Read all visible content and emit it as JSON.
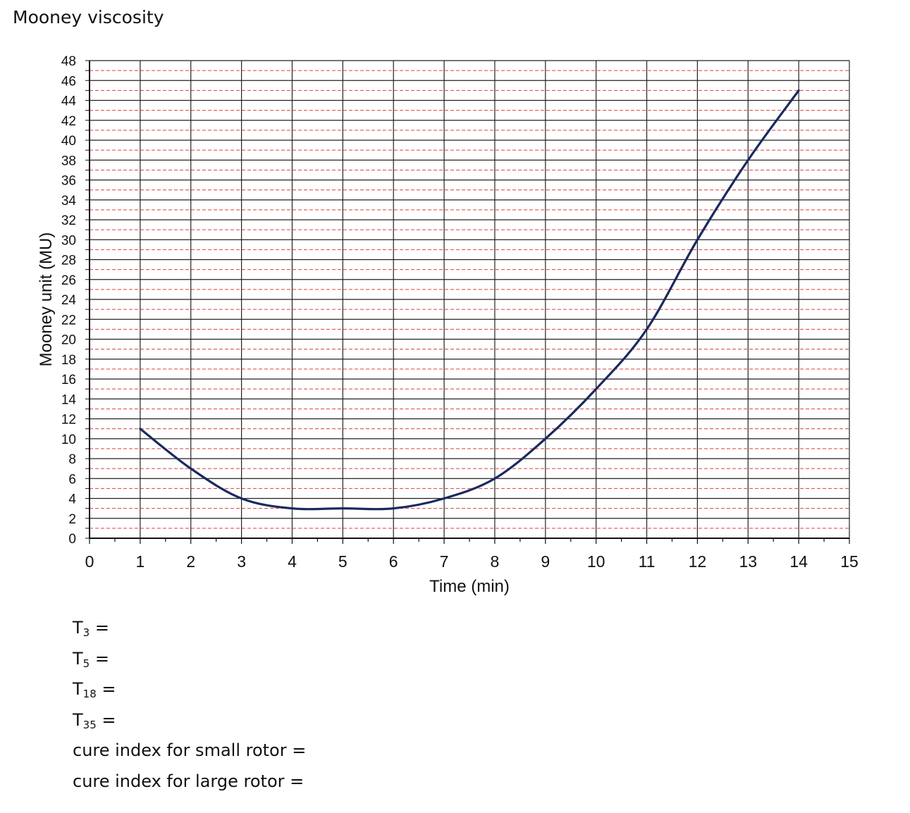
{
  "heading": "Mooney viscosity",
  "chart_data": {
    "type": "line",
    "title": "",
    "xlabel": "Time (min)",
    "ylabel": "Mooney unit (MU)",
    "xlim": [
      0,
      15
    ],
    "ylim": [
      0,
      48
    ],
    "x_ticks": [
      0,
      1,
      2,
      3,
      4,
      5,
      6,
      7,
      8,
      9,
      10,
      11,
      12,
      13,
      14,
      15
    ],
    "y_ticks": [
      0,
      2,
      4,
      6,
      8,
      10,
      12,
      14,
      16,
      18,
      20,
      22,
      24,
      26,
      28,
      30,
      32,
      34,
      36,
      38,
      40,
      42,
      44,
      46,
      48
    ],
    "grid": true,
    "grid_minor_y": 1,
    "legend": "none",
    "series": [
      {
        "color": "#1a2a5e",
        "x": [
          1,
          2,
          3,
          4,
          5,
          6,
          7,
          8,
          9,
          10,
          11,
          12,
          13,
          14
        ],
        "y": [
          11,
          7,
          4,
          3,
          3,
          3,
          4,
          6,
          10,
          15,
          21,
          30,
          38,
          45
        ]
      }
    ]
  },
  "answers": [
    {
      "label": "T",
      "sub": "3",
      "suffix": " ="
    },
    {
      "label": "T",
      "sub": "5",
      "suffix": " ="
    },
    {
      "label": "T",
      "sub": "18",
      "suffix": " ="
    },
    {
      "label": "T",
      "sub": "35",
      "suffix": " ="
    },
    {
      "label": "cure index for small rotor",
      "sub": "",
      "suffix": " ="
    },
    {
      "label": "cure index for large rotor",
      "sub": "",
      "suffix": " ="
    }
  ]
}
